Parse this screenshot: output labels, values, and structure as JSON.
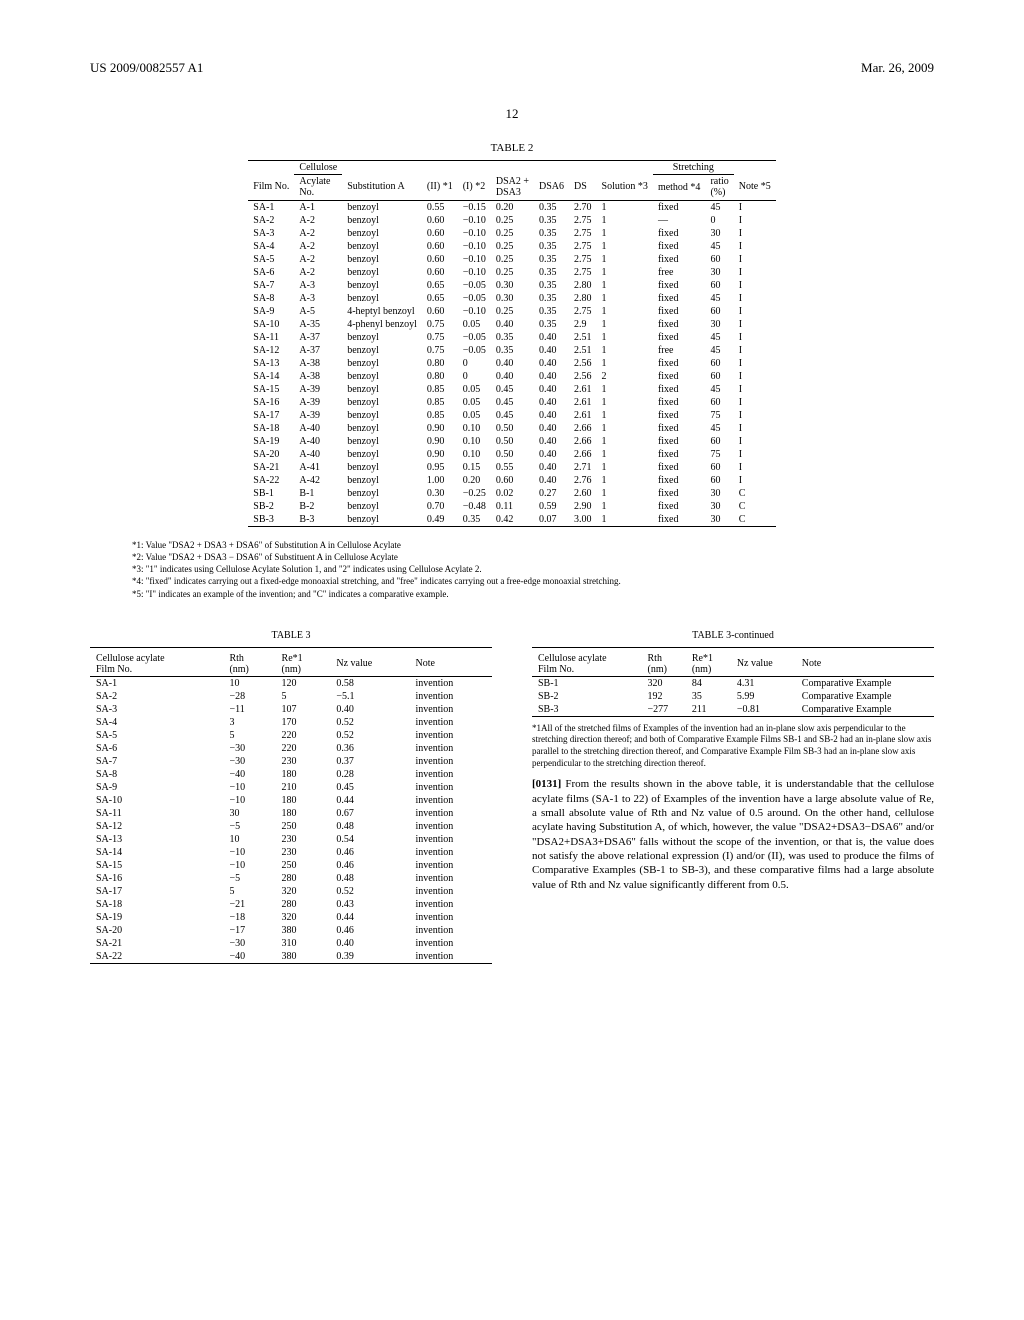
{
  "header": {
    "left": "US 2009/0082557 A1",
    "right": "Mar. 26, 2009"
  },
  "page_number": "12",
  "table2": {
    "caption": "TABLE 2",
    "group_headers": {
      "cellulose": "Cellulose",
      "stretching": "Stretching"
    },
    "sub_headers": {
      "film_no": "Film No.",
      "acylate_no": "Acylate\nNo.",
      "subA": "Substitution A",
      "II": "(II) *1",
      "I": "(I) *2",
      "DSA23": "DSA2 +\nDSA3",
      "DSA6": "DSA6",
      "DS": "DS",
      "solution": "Solution *3",
      "method": "method *4",
      "ratio": "ratio\n(%)",
      "note": "Note *5"
    },
    "rows": [
      [
        "SA-1",
        "A-1",
        "benzoyl",
        "0.55",
        "−0.15",
        "0.20",
        "0.35",
        "2.70",
        "1",
        "fixed",
        "45",
        "I"
      ],
      [
        "SA-2",
        "A-2",
        "benzoyl",
        "0.60",
        "−0.10",
        "0.25",
        "0.35",
        "2.75",
        "1",
        "—",
        "0",
        "I"
      ],
      [
        "SA-3",
        "A-2",
        "benzoyl",
        "0.60",
        "−0.10",
        "0.25",
        "0.35",
        "2.75",
        "1",
        "fixed",
        "30",
        "I"
      ],
      [
        "SA-4",
        "A-2",
        "benzoyl",
        "0.60",
        "−0.10",
        "0.25",
        "0.35",
        "2.75",
        "1",
        "fixed",
        "45",
        "I"
      ],
      [
        "SA-5",
        "A-2",
        "benzoyl",
        "0.60",
        "−0.10",
        "0.25",
        "0.35",
        "2.75",
        "1",
        "fixed",
        "60",
        "I"
      ],
      [
        "SA-6",
        "A-2",
        "benzoyl",
        "0.60",
        "−0.10",
        "0.25",
        "0.35",
        "2.75",
        "1",
        "free",
        "30",
        "I"
      ],
      [
        "SA-7",
        "A-3",
        "benzoyl",
        "0.65",
        "−0.05",
        "0.30",
        "0.35",
        "2.80",
        "1",
        "fixed",
        "60",
        "I"
      ],
      [
        "SA-8",
        "A-3",
        "benzoyl",
        "0.65",
        "−0.05",
        "0.30",
        "0.35",
        "2.80",
        "1",
        "fixed",
        "45",
        "I"
      ],
      [
        "SA-9",
        "A-5",
        "4-heptyl benzoyl",
        "0.60",
        "−0.10",
        "0.25",
        "0.35",
        "2.75",
        "1",
        "fixed",
        "60",
        "I"
      ],
      [
        "SA-10",
        "A-35",
        "4-phenyl benzoyl",
        "0.75",
        "0.05",
        "0.40",
        "0.35",
        "2.9",
        "1",
        "fixed",
        "30",
        "I"
      ],
      [
        "SA-11",
        "A-37",
        "benzoyl",
        "0.75",
        "−0.05",
        "0.35",
        "0.40",
        "2.51",
        "1",
        "fixed",
        "45",
        "I"
      ],
      [
        "SA-12",
        "A-37",
        "benzoyl",
        "0.75",
        "−0.05",
        "0.35",
        "0.40",
        "2.51",
        "1",
        "free",
        "45",
        "I"
      ],
      [
        "SA-13",
        "A-38",
        "benzoyl",
        "0.80",
        "0",
        "0.40",
        "0.40",
        "2.56",
        "1",
        "fixed",
        "60",
        "I"
      ],
      [
        "SA-14",
        "A-38",
        "benzoyl",
        "0.80",
        "0",
        "0.40",
        "0.40",
        "2.56",
        "2",
        "fixed",
        "60",
        "I"
      ],
      [
        "SA-15",
        "A-39",
        "benzoyl",
        "0.85",
        "0.05",
        "0.45",
        "0.40",
        "2.61",
        "1",
        "fixed",
        "45",
        "I"
      ],
      [
        "SA-16",
        "A-39",
        "benzoyl",
        "0.85",
        "0.05",
        "0.45",
        "0.40",
        "2.61",
        "1",
        "fixed",
        "60",
        "I"
      ],
      [
        "SA-17",
        "A-39",
        "benzoyl",
        "0.85",
        "0.05",
        "0.45",
        "0.40",
        "2.61",
        "1",
        "fixed",
        "75",
        "I"
      ],
      [
        "SA-18",
        "A-40",
        "benzoyl",
        "0.90",
        "0.10",
        "0.50",
        "0.40",
        "2.66",
        "1",
        "fixed",
        "45",
        "I"
      ],
      [
        "SA-19",
        "A-40",
        "benzoyl",
        "0.90",
        "0.10",
        "0.50",
        "0.40",
        "2.66",
        "1",
        "fixed",
        "60",
        "I"
      ],
      [
        "SA-20",
        "A-40",
        "benzoyl",
        "0.90",
        "0.10",
        "0.50",
        "0.40",
        "2.66",
        "1",
        "fixed",
        "75",
        "I"
      ],
      [
        "SA-21",
        "A-41",
        "benzoyl",
        "0.95",
        "0.15",
        "0.55",
        "0.40",
        "2.71",
        "1",
        "fixed",
        "60",
        "I"
      ],
      [
        "SA-22",
        "A-42",
        "benzoyl",
        "1.00",
        "0.20",
        "0.60",
        "0.40",
        "2.76",
        "1",
        "fixed",
        "60",
        "I"
      ],
      [
        "SB-1",
        "B-1",
        "benzoyl",
        "0.30",
        "−0.25",
        "0.02",
        "0.27",
        "2.60",
        "1",
        "fixed",
        "30",
        "C"
      ],
      [
        "SB-2",
        "B-2",
        "benzoyl",
        "0.70",
        "−0.48",
        "0.11",
        "0.59",
        "2.90",
        "1",
        "fixed",
        "30",
        "C"
      ],
      [
        "SB-3",
        "B-3",
        "benzoyl",
        "0.49",
        "0.35",
        "0.42",
        "0.07",
        "3.00",
        "1",
        "fixed",
        "30",
        "C"
      ]
    ],
    "notes": [
      "*1: Value \"DSA2 + DSA3 + DSA6\" of Substitution A in Cellulose Acylate",
      "*2: Value \"DSA2 + DSA3 − DSA6\" of Substituent A in Cellulose Acylate",
      "*3: \"1\" indicates using Cellulose Acylate Solution 1, and \"2\" indicates using Cellulose Acylate 2.",
      "*4: \"fixed\" indicates carrying out a fixed-edge monoaxial stretching, and \"free\" indicates carrying out a free-edge monoaxial stretching.",
      "*5: \"I\" indicates an example of the invention; and \"C\" indicates a comparative example."
    ]
  },
  "table3_left": {
    "caption": "TABLE 3",
    "headers": {
      "film_no": "Cellulose acylate\nFilm No.",
      "rth": "Rth\n(nm)",
      "re": "Re*1\n(nm)",
      "nz": "Nz value",
      "note": "Note"
    },
    "rows": [
      [
        "SA-1",
        "10",
        "120",
        "0.58",
        "invention"
      ],
      [
        "SA-2",
        "−28",
        "5",
        "−5.1",
        "invention"
      ],
      [
        "SA-3",
        "−11",
        "107",
        "0.40",
        "invention"
      ],
      [
        "SA-4",
        "3",
        "170",
        "0.52",
        "invention"
      ],
      [
        "SA-5",
        "5",
        "220",
        "0.52",
        "invention"
      ],
      [
        "SA-6",
        "−30",
        "220",
        "0.36",
        "invention"
      ],
      [
        "SA-7",
        "−30",
        "230",
        "0.37",
        "invention"
      ],
      [
        "SA-8",
        "−40",
        "180",
        "0.28",
        "invention"
      ],
      [
        "SA-9",
        "−10",
        "210",
        "0.45",
        "invention"
      ],
      [
        "SA-10",
        "−10",
        "180",
        "0.44",
        "invention"
      ],
      [
        "SA-11",
        "30",
        "180",
        "0.67",
        "invention"
      ],
      [
        "SA-12",
        "−5",
        "250",
        "0.48",
        "invention"
      ],
      [
        "SA-13",
        "10",
        "230",
        "0.54",
        "invention"
      ],
      [
        "SA-14",
        "−10",
        "230",
        "0.46",
        "invention"
      ],
      [
        "SA-15",
        "−10",
        "250",
        "0.46",
        "invention"
      ],
      [
        "SA-16",
        "−5",
        "280",
        "0.48",
        "invention"
      ],
      [
        "SA-17",
        "5",
        "320",
        "0.52",
        "invention"
      ],
      [
        "SA-18",
        "−21",
        "280",
        "0.43",
        "invention"
      ],
      [
        "SA-19",
        "−18",
        "320",
        "0.44",
        "invention"
      ],
      [
        "SA-20",
        "−17",
        "380",
        "0.46",
        "invention"
      ],
      [
        "SA-21",
        "−30",
        "310",
        "0.40",
        "invention"
      ],
      [
        "SA-22",
        "−40",
        "380",
        "0.39",
        "invention"
      ]
    ]
  },
  "table3_right": {
    "caption": "TABLE 3-continued",
    "headers": {
      "film_no": "Cellulose acylate\nFilm No.",
      "rth": "Rth\n(nm)",
      "re": "Re*1\n(nm)",
      "nz": "Nz value",
      "note": "Note"
    },
    "rows": [
      [
        "SB-1",
        "320",
        "84",
        "4.31",
        "Comparative Example"
      ],
      [
        "SB-2",
        "192",
        "35",
        "5.99",
        "Comparative Example"
      ],
      [
        "SB-3",
        "−277",
        "211",
        "−0.81",
        "Comparative Example"
      ]
    ],
    "note": "*1All of the stretched films of Examples of the invention had an in-plane slow axis perpendicular to the stretching direction thereof; and both of Comparative Example Films SB-1 and SB-2 had an in-plane slow axis parallel to the stretching direction thereof, and Comparative Example Film SB-3 had an in-plane slow axis perpendicular to the stretching direction thereof."
  },
  "paragraph": {
    "num": "[0131]",
    "text": "   From the results shown in the above table, it is understandable that the cellulose acylate films (SA-1 to 22) of Examples of the invention have a large absolute value of Re, a small absolute value of Rth and Nz value of 0.5 around. On the other hand, cellulose acylate having Substitution A, of which, however, the value \"DSA2+DSA3−DSA6\" and/or \"DSA2+DSA3+DSA6\" falls without the scope of the invention, or that is, the value does not satisfy the above relational expression (I) and/or (II), was used to produce the films of Comparative Examples (SB-1 to SB-3), and these comparative films had a large absolute value of Rth and Nz value significantly different from 0.5."
  }
}
